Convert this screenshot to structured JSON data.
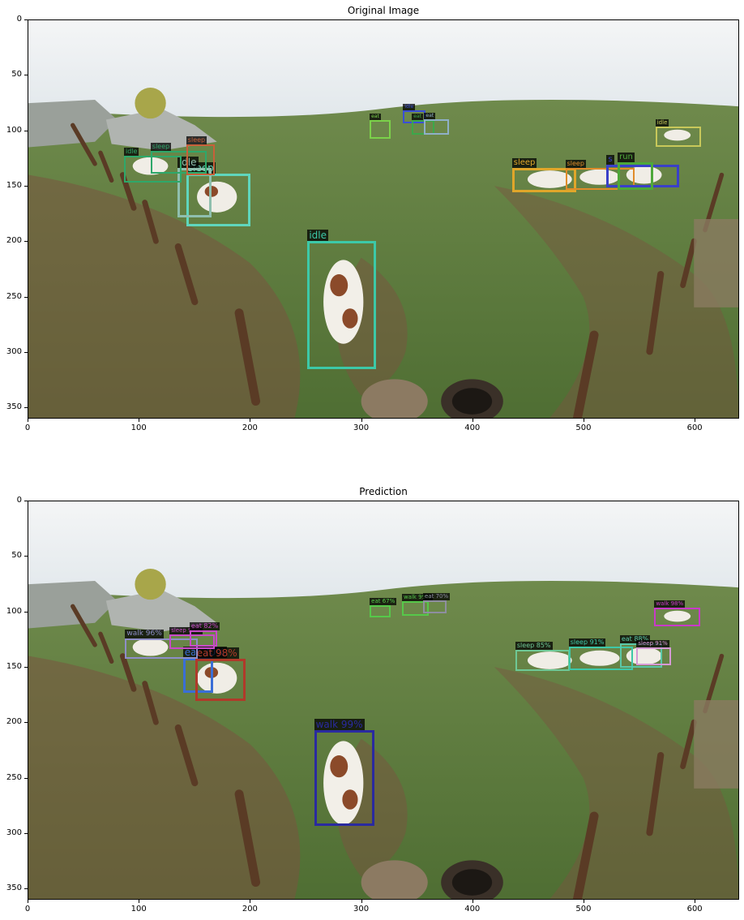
{
  "panels": [
    {
      "key": "original",
      "title": "Original Image",
      "x_ticks": [
        "0",
        "100",
        "200",
        "300",
        "400",
        "500",
        "600"
      ],
      "y_ticks": [
        "0",
        "50",
        "100",
        "150",
        "200",
        "250",
        "300",
        "350"
      ],
      "detections": [
        {
          "label": "idle",
          "color": "#3cc9a8",
          "x1": 251,
          "y1": 199,
          "x2": 313,
          "y2": 315,
          "size": 12
        },
        {
          "label": "sleep",
          "color": "#5fd6bd",
          "x1": 142,
          "y1": 138,
          "x2": 200,
          "y2": 186,
          "size": 12
        },
        {
          "label": "idle",
          "color": "#8fbfae",
          "x1": 134,
          "y1": 133,
          "x2": 165,
          "y2": 178,
          "size": 12
        },
        {
          "label": "idle",
          "color": "#2ea86a",
          "x1": 86,
          "y1": 122,
          "x2": 138,
          "y2": 146,
          "size": 8
        },
        {
          "label": "sleep",
          "color": "#2ea86a",
          "x1": 110,
          "y1": 118,
          "x2": 160,
          "y2": 138,
          "size": 8
        },
        {
          "label": "sleep",
          "color": "#c8603a",
          "x1": 142,
          "y1": 112,
          "x2": 168,
          "y2": 140,
          "size": 8
        },
        {
          "label": "eat",
          "color": "#7bd14a",
          "x1": 307,
          "y1": 90,
          "x2": 326,
          "y2": 107,
          "size": 6
        },
        {
          "label": "idle",
          "color": "#3a4fd6",
          "x1": 337,
          "y1": 81,
          "x2": 357,
          "y2": 93,
          "size": 6
        },
        {
          "label": "eat",
          "color": "#3ca84a",
          "x1": 345,
          "y1": 90,
          "x2": 365,
          "y2": 103,
          "size": 6
        },
        {
          "label": "eat",
          "color": "#8fb0c8",
          "x1": 356,
          "y1": 89,
          "x2": 378,
          "y2": 103,
          "size": 6
        },
        {
          "label": "sleep",
          "color": "#e0a62a",
          "x1": 435,
          "y1": 133,
          "x2": 493,
          "y2": 155,
          "size": 10
        },
        {
          "label": "sleep",
          "color": "#e08c2a",
          "x1": 483,
          "y1": 133,
          "x2": 545,
          "y2": 153,
          "size": 8
        },
        {
          "label": "s",
          "color": "#3a40c8",
          "x1": 520,
          "y1": 130,
          "x2": 585,
          "y2": 151,
          "size": 10
        },
        {
          "label": "run",
          "color": "#4ea83a",
          "x1": 530,
          "y1": 128,
          "x2": 562,
          "y2": 153,
          "size": 10
        },
        {
          "label": "idle",
          "color": "#c8c85a",
          "x1": 564,
          "y1": 96,
          "x2": 605,
          "y2": 114,
          "size": 7
        }
      ]
    },
    {
      "key": "prediction",
      "title": "Prediction",
      "x_ticks": [
        "0",
        "100",
        "200",
        "300",
        "400",
        "500",
        "600"
      ],
      "y_ticks": [
        "0",
        "50",
        "100",
        "150",
        "200",
        "250",
        "300",
        "350"
      ],
      "detections": [
        {
          "label": "walk 99%",
          "color": "#2a2aa0",
          "x1": 257,
          "y1": 206,
          "x2": 311,
          "y2": 293,
          "size": 12
        },
        {
          "label": "eat 70%",
          "color": "#3a6ed6",
          "x1": 139,
          "y1": 141,
          "x2": 166,
          "y2": 173,
          "size": 12
        },
        {
          "label": "eat 98%",
          "color": "#b03a2a",
          "x1": 150,
          "y1": 142,
          "x2": 195,
          "y2": 180,
          "size": 12
        },
        {
          "label": "walk 96%",
          "color": "#8e8ec8",
          "x1": 87,
          "y1": 124,
          "x2": 152,
          "y2": 142,
          "size": 9
        },
        {
          "label": "sleep 95%",
          "color": "#c84ac8",
          "x1": 127,
          "y1": 120,
          "x2": 168,
          "y2": 133,
          "size": 7
        },
        {
          "label": "eat 82%",
          "color": "#c84ac8",
          "x1": 145,
          "y1": 116,
          "x2": 170,
          "y2": 131,
          "size": 8
        },
        {
          "label": "eat 67%",
          "color": "#56c84a",
          "x1": 307,
          "y1": 94,
          "x2": 326,
          "y2": 105,
          "size": 7
        },
        {
          "label": "walk 99%",
          "color": "#56c84a",
          "x1": 336,
          "y1": 90,
          "x2": 360,
          "y2": 103,
          "size": 7
        },
        {
          "label": "eat 70%",
          "color": "#8e8ea0",
          "x1": 355,
          "y1": 89,
          "x2": 376,
          "y2": 101,
          "size": 7
        },
        {
          "label": "sleep 85%",
          "color": "#6ec896",
          "x1": 438,
          "y1": 134,
          "x2": 487,
          "y2": 153,
          "size": 8
        },
        {
          "label": "sleep 91%",
          "color": "#3ec8a8",
          "x1": 486,
          "y1": 131,
          "x2": 544,
          "y2": 152,
          "size": 8
        },
        {
          "label": "eat 88%",
          "color": "#5ac8a8",
          "x1": 532,
          "y1": 128,
          "x2": 570,
          "y2": 150,
          "size": 8
        },
        {
          "label": "sleep 91%",
          "color": "#d69ad6",
          "x1": 547,
          "y1": 132,
          "x2": 578,
          "y2": 148,
          "size": 7
        },
        {
          "label": "walk 98%",
          "color": "#c83ac8",
          "x1": 563,
          "y1": 96,
          "x2": 604,
          "y2": 113,
          "size": 7
        }
      ]
    }
  ]
}
